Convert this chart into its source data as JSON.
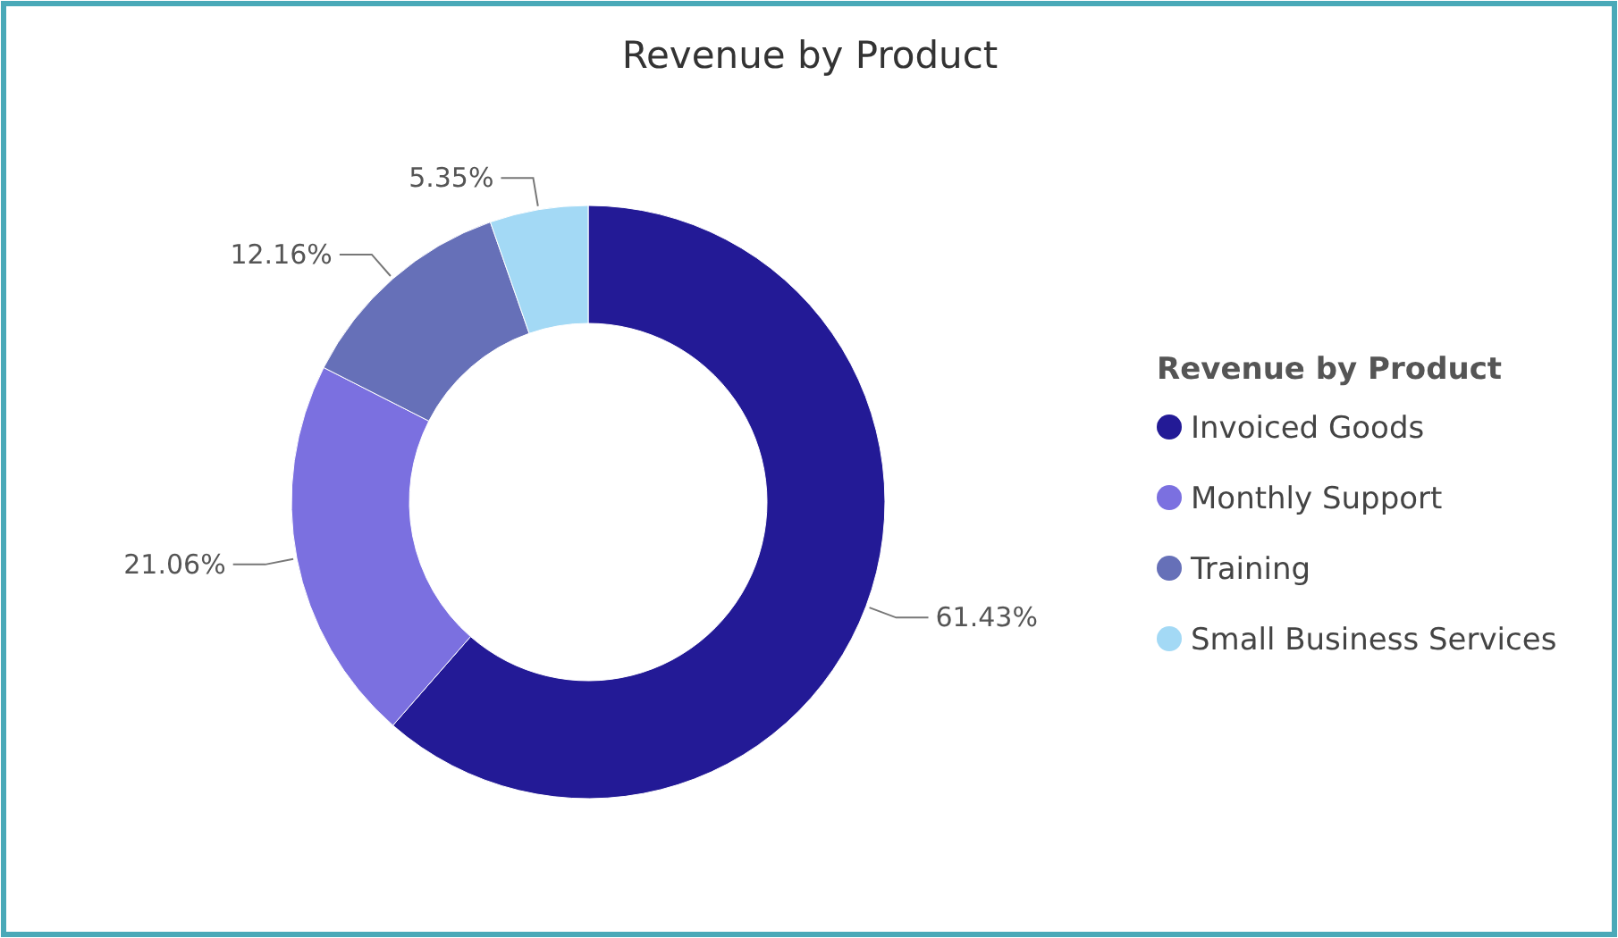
{
  "chart_data": {
    "type": "donut",
    "title": "Revenue by Product",
    "legend_title": "Revenue by Product",
    "legend": "right",
    "categories": [
      "Invoiced Goods",
      "Monthly Support",
      "Training",
      "Small Business Services"
    ],
    "values": [
      61.43,
      21.06,
      12.16,
      5.35
    ],
    "colors": [
      "#231a96",
      "#7b70e0",
      "#6670b8",
      "#a3d9f5"
    ],
    "value_labels": [
      "61.43%",
      "21.06%",
      "12.16%",
      "5.35%"
    ]
  }
}
